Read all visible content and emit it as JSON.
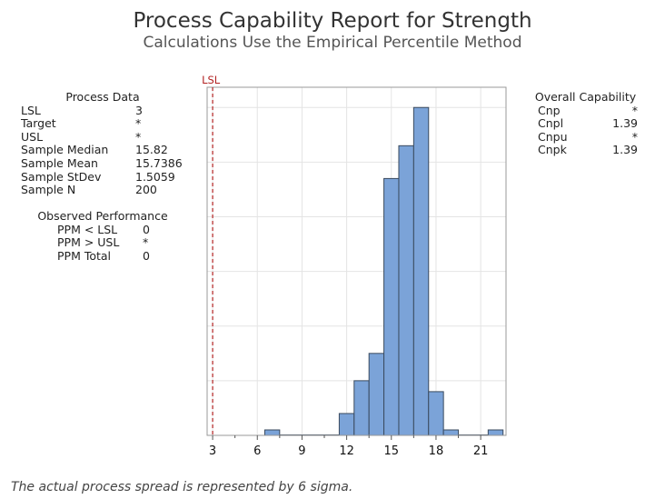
{
  "title": "Process Capability Report for Strength",
  "subtitle": "Calculations Use the Empirical Percentile Method",
  "process_data": {
    "heading": "Process Data",
    "rows": [
      {
        "label": "LSL",
        "value": "3"
      },
      {
        "label": "Target",
        "value": "*"
      },
      {
        "label": "USL",
        "value": "*"
      },
      {
        "label": "Sample Median",
        "value": "15.82"
      },
      {
        "label": "Sample Mean",
        "value": "15.7386"
      },
      {
        "label": "Sample StDev",
        "value": "1.5059"
      },
      {
        "label": "Sample N",
        "value": "200"
      }
    ]
  },
  "observed_performance": {
    "heading": "Observed Performance",
    "rows": [
      {
        "label": "PPM < LSL",
        "value": "0"
      },
      {
        "label": "PPM > USL",
        "value": "*"
      },
      {
        "label": "PPM Total",
        "value": "0"
      }
    ]
  },
  "overall_capability": {
    "heading": "Overall Capability",
    "rows": [
      {
        "label": "Cnp",
        "value": "*"
      },
      {
        "label": "Cnpl",
        "value": "1.39"
      },
      {
        "label": "Cnpu",
        "value": "*"
      },
      {
        "label": "Cnpk",
        "value": "1.39"
      }
    ]
  },
  "footnote": "The actual process spread is represented by 6 sigma.",
  "chart_data": {
    "type": "bar",
    "subtype": "histogram",
    "bin_width": 1,
    "bin_centers": [
      7,
      12,
      13,
      14,
      15,
      16,
      17,
      18,
      19,
      22
    ],
    "values": [
      1,
      4,
      10,
      15,
      47,
      53,
      60,
      8,
      1,
      1
    ],
    "xlim": [
      2.63,
      22.7
    ],
    "ylim": [
      0,
      63.7
    ],
    "xticks": [
      "3",
      "6",
      "9",
      "12",
      "15",
      "18",
      "21"
    ],
    "y_gridlines": [
      10,
      20,
      30,
      40,
      50,
      60
    ],
    "y_tick_labels_shown": false,
    "grid": true,
    "bar_color": "#7ba3d8",
    "bar_edge_color": "#3a4a5e",
    "reference_lines": [
      {
        "label": "LSL",
        "x": 3,
        "color": "#b22222",
        "style": "dashed"
      }
    ]
  }
}
